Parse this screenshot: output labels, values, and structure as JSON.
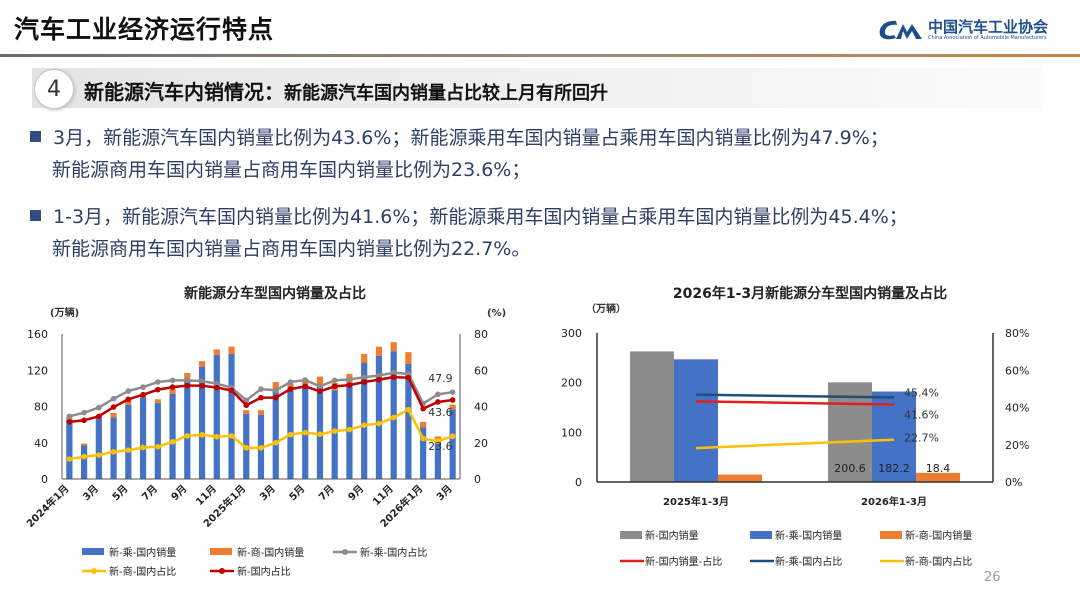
{
  "header": {
    "title": "汽车工业经济运行特点",
    "logo_cn": "中国汽车工业协会",
    "logo_en": "China Association of Automobile Manufacturers",
    "logo_mark": "CAM"
  },
  "section": {
    "number": "4",
    "title": "新能源汽车内销情况：",
    "subtitle": "新能源汽车国内销量占比较上月有所回升"
  },
  "bullets": [
    {
      "line1": "3月，新能源汽车国内销量比例为43.6%；新能源乘用车国内销量占乘用车国内销量比例为47.9%；",
      "line2": "新能源商用车国内销量占商用车国内销量比例为23.6%；"
    },
    {
      "line1": "1-3月，新能源汽车国内销量比例为41.6%；新能源乘用车国内销量占乘用车国内销量比例为45.4%；",
      "line2": "新能源商用车国内销量占商用车国内销量比例为22.7%。"
    }
  ],
  "page_number": "26",
  "colors": {
    "blue": "#4472c4",
    "orange": "#ed7d31",
    "gray": "#8c8c8c",
    "yellow": "#ffc000",
    "red": "#c00000",
    "navy": "#1f4e79",
    "accent": "#1f4e8c"
  },
  "chart_data": [
    {
      "type": "bar",
      "title": "新能源分车型国内销量及占比",
      "ylabel": "(万辆)",
      "y2label": "(%)",
      "ylim": [
        0,
        160
      ],
      "y2lim": [
        0,
        80
      ],
      "yticks": [
        "0",
        "40",
        "80",
        "120",
        "160"
      ],
      "y2ticks": [
        "0",
        "20",
        "40",
        "60",
        "80"
      ],
      "x_tick_labels": [
        "2024年1月",
        "3月",
        "5月",
        "7月",
        "9月",
        "11月",
        "2025年1月",
        "3月",
        "5月",
        "7月",
        "9月",
        "11月",
        "2026年1月",
        "3月"
      ],
      "stacked": true,
      "series": [
        {
          "name": "新-乘-国内销量",
          "type": "bar",
          "axis": "left",
          "color": "#4472c4",
          "values": [
            66,
            37,
            67,
            68,
            82,
            90,
            84,
            94,
            110,
            124,
            137,
            138,
            72,
            71,
            96,
            97,
            102,
            104,
            98,
            106,
            128,
            136,
            141,
            127,
            57,
            43,
            77
          ]
        },
        {
          "name": "新-商-国内销量",
          "type": "bar",
          "axis": "left",
          "color": "#ed7d31",
          "values": [
            2,
            2,
            3,
            5,
            4,
            4,
            4,
            5,
            7,
            6,
            6,
            8,
            4,
            5,
            11,
            8,
            8,
            9,
            8,
            10,
            10,
            10,
            10,
            13,
            6,
            4,
            5
          ]
        },
        {
          "name": "新-乘-国内占比",
          "type": "line",
          "axis": "right",
          "color": "#8c8c8c",
          "values": [
            34.6,
            36.6,
            39.4,
            44.3,
            48.5,
            50.7,
            53.5,
            54.4,
            54.4,
            54.0,
            52.6,
            50.4,
            43.4,
            49.6,
            48.9,
            53.5,
            54.6,
            51.1,
            54.4,
            54.9,
            56.2,
            57.1,
            58.6,
            58.0,
            41.6,
            46.7,
            47.9
          ],
          "last_label": "47.9"
        },
        {
          "name": "新-商-国内占比",
          "type": "line",
          "axis": "right",
          "color": "#ffc000",
          "values": [
            11.0,
            12.3,
            13.2,
            15.0,
            15.9,
            17.4,
            17.8,
            20.5,
            23.8,
            24.4,
            23.3,
            23.8,
            17.2,
            17.2,
            20.0,
            24.5,
            25.6,
            24.7,
            26.4,
            27.3,
            29.7,
            30.6,
            33.9,
            38.3,
            22.3,
            20.9,
            23.6
          ],
          "last_label": "23.6"
        },
        {
          "name": "新-国内占比",
          "type": "line",
          "axis": "right",
          "color": "#c00000",
          "values": [
            31.5,
            32.4,
            34.6,
            39.7,
            44.0,
            46.5,
            49.3,
            50.7,
            51.5,
            51.5,
            50.4,
            48.9,
            40.7,
            44.9,
            44.9,
            49.6,
            51.1,
            48.4,
            51.1,
            51.8,
            53.5,
            54.8,
            56.2,
            55.9,
            38.8,
            42.5,
            43.6
          ],
          "last_label": "43.6"
        }
      ],
      "legend": "bottom"
    },
    {
      "type": "bar",
      "title": "2026年1-3月新能源分车型国内销量及占比",
      "ylabel": "（万辆）",
      "ylim": [
        0,
        300
      ],
      "y2lim": [
        0,
        80
      ],
      "yticks": [
        "0",
        "100",
        "200",
        "300"
      ],
      "y2ticks": [
        "0%",
        "20%",
        "40%",
        "60%",
        "80%"
      ],
      "categories": [
        "2025年1-3月",
        "2026年1-3月"
      ],
      "series": [
        {
          "name": "新-国内销量",
          "type": "bar",
          "axis": "left",
          "color": "#8c8c8c",
          "values": [
            263,
            200.6
          ],
          "labels": [
            "",
            "200.6"
          ]
        },
        {
          "name": "新-乘-国内销量",
          "type": "bar",
          "axis": "left",
          "color": "#4472c4",
          "values": [
            247,
            182.2
          ],
          "labels": [
            "",
            "182.2"
          ]
        },
        {
          "name": "新-商-国内销量",
          "type": "bar",
          "axis": "left",
          "color": "#ed7d31",
          "values": [
            15,
            18.4
          ],
          "labels": [
            "",
            "18.4"
          ]
        },
        {
          "name": "新-国内销量-占比",
          "type": "line",
          "axis": "right",
          "color": "#e02020",
          "values": [
            43.3,
            41.6
          ],
          "labels": [
            "",
            "41.6%"
          ]
        },
        {
          "name": "新-乘-国内占比",
          "type": "line",
          "axis": "right",
          "color": "#1f4e79",
          "values": [
            46.9,
            45.4
          ],
          "labels": [
            "",
            "45.4%"
          ]
        },
        {
          "name": "新-商-国内占比",
          "type": "line",
          "axis": "right",
          "color": "#ffc000",
          "values": [
            18.2,
            22.7
          ],
          "labels": [
            "",
            "22.7%"
          ]
        }
      ],
      "legend": "bottom"
    }
  ]
}
